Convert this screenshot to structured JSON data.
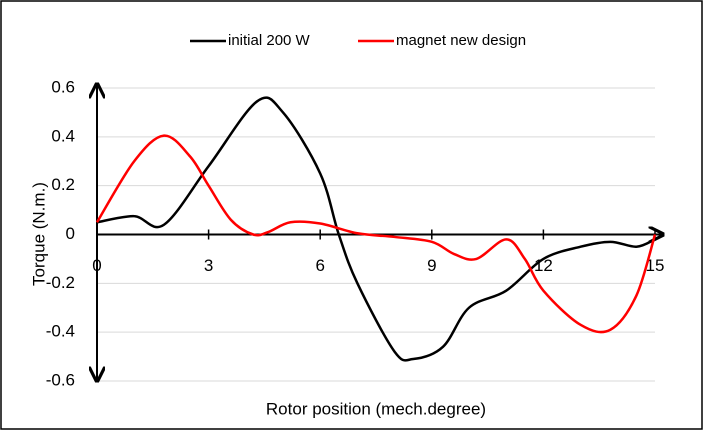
{
  "chart_data": {
    "type": "line",
    "x_label": "Rotor position (mech.degree)",
    "y_label": "Torque (N.m.)",
    "xlim": [
      0,
      15
    ],
    "xticks": [
      0,
      3,
      6,
      9,
      12,
      15
    ],
    "ylim": [
      -0.6,
      0.6
    ],
    "yticks": [
      -0.6,
      -0.4,
      -0.2,
      0,
      0.2,
      0.4,
      0.6
    ],
    "grid": true,
    "legend": "top",
    "series": [
      {
        "name": "initial 200 W",
        "color": "#000000",
        "x": [
          0,
          1,
          1.8,
          3,
          4.3,
          5,
          6,
          6.5,
          7,
          8,
          8.5,
          9.3,
          10,
          11,
          12,
          13,
          13.8,
          14.5,
          15
        ],
        "values": [
          0.05,
          0.075,
          0.04,
          0.28,
          0.545,
          0.5,
          0.25,
          0,
          -0.2,
          -0.48,
          -0.51,
          -0.46,
          -0.3,
          -0.23,
          -0.1,
          -0.05,
          -0.03,
          -0.05,
          -0.02
        ]
      },
      {
        "name": "magnet new design",
        "color": "#ff0000",
        "x": [
          0,
          1,
          1.8,
          2.5,
          3,
          3.6,
          4.2,
          4.6,
          5.2,
          6,
          7,
          8,
          9,
          9.6,
          10.2,
          11,
          11.5,
          12,
          13,
          13.8,
          14.5,
          15
        ],
        "values": [
          0.05,
          0.3,
          0.405,
          0.32,
          0.2,
          0.06,
          0,
          0.01,
          0.05,
          0.045,
          0.005,
          -0.01,
          -0.03,
          -0.08,
          -0.1,
          -0.02,
          -0.1,
          -0.23,
          -0.37,
          -0.39,
          -0.25,
          0
        ]
      }
    ]
  }
}
